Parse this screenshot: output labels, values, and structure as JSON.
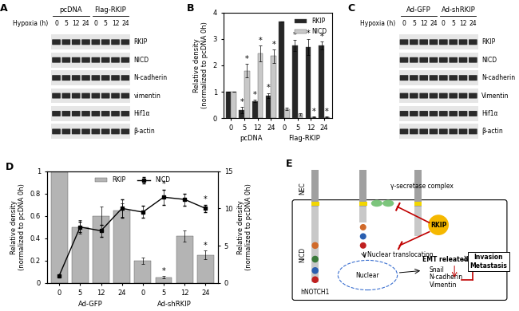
{
  "blots": [
    {
      "letter": "A",
      "time_label": "Hypoxia (h)",
      "groups": [
        "pcDNA",
        "Flag-RKIP"
      ],
      "lanes": [
        "0",
        "5",
        "12",
        "24"
      ],
      "rows": [
        "RKIP",
        "NICD",
        "N-cadherin",
        "vimentin",
        "Hif1α",
        "β-actin"
      ]
    },
    {
      "letter": "C",
      "time_label": "Hypoxia (h)",
      "groups": [
        "Ad-GFP",
        "Ad-shRKIP"
      ],
      "lanes": [
        "0",
        "5",
        "12",
        "24"
      ],
      "rows": [
        "RKIP",
        "NICD",
        "N-cadherin",
        "Vimentin",
        "Hif1α",
        "β-actin"
      ]
    }
  ],
  "chart_data": [
    {
      "letter": "B",
      "type": "bar",
      "ylabel": "Relative density\n(normalized to pcDNA 0h)",
      "categories": [
        "0",
        "5",
        "12",
        "24",
        "0",
        "5",
        "12",
        "24"
      ],
      "groups": [
        "pcDNA",
        "Flag-RKIP"
      ],
      "ylim": [
        0,
        4
      ],
      "yticks": [
        0,
        1,
        2,
        3,
        4
      ],
      "legend": "upper right",
      "annotation_text": "*",
      "series": [
        {
          "name": "RKIP",
          "color": "#262626",
          "values": [
            1,
            0.3,
            0.65,
            0.85,
            3.65,
            2.75,
            2.7,
            2.75
          ],
          "errors": [
            0,
            0.12,
            0.05,
            0.1,
            0,
            0.2,
            0.3,
            0.15
          ],
          "significant": [
            false,
            true,
            true,
            true,
            false,
            true,
            true,
            true
          ]
        },
        {
          "name": "NICD",
          "color": "#c8c8c8",
          "values": [
            1,
            1.8,
            2.45,
            2.35,
            0.35,
            0.15,
            0.05,
            0.05
          ],
          "errors": [
            0,
            0.25,
            0.3,
            0.25,
            0.05,
            0.05,
            0.02,
            0.02
          ],
          "significant": [
            false,
            true,
            true,
            true,
            false,
            false,
            true,
            true
          ]
        }
      ]
    },
    {
      "letter": "D",
      "type": "bar",
      "ylabel": "Relative density\n(normalized to pcDNA 0h)",
      "y2label": "Relative density\n(normalized to pcDNA 0h)",
      "categories": [
        "0",
        "5",
        "12",
        "24",
        "0",
        "5",
        "12",
        "24"
      ],
      "groups": [
        "Ad-GFP",
        "Ad-shRKIP"
      ],
      "ylim": [
        0,
        1
      ],
      "yticks": [
        0,
        0.2,
        0.4,
        0.6,
        0.8,
        1
      ],
      "y2lim": [
        0,
        15
      ],
      "y2ticks": [
        0,
        5,
        10,
        15
      ],
      "legend": "upper center",
      "annotation_text": "*",
      "series": [
        {
          "name": "RKIP",
          "type": "bar",
          "color": "#b4b4b4",
          "values": [
            1,
            0.5,
            0.6,
            0.65,
            0.2,
            0.05,
            0.42,
            0.25
          ],
          "errors": [
            0,
            0.06,
            0.08,
            0.06,
            0.03,
            0.01,
            0.05,
            0.04
          ],
          "significant": [
            false,
            false,
            false,
            false,
            false,
            true,
            false,
            true
          ]
        },
        {
          "name": "NICD",
          "type": "line",
          "axis": "y2",
          "color": "#000000",
          "marker": "square",
          "values": [
            1,
            7.5,
            7,
            10,
            9.5,
            11.5,
            11.2,
            10
          ],
          "errors": [
            0,
            0.7,
            0.8,
            1.2,
            0.8,
            1,
            0.8,
            0.5
          ],
          "significant": [
            false,
            false,
            false,
            false,
            false,
            true,
            false,
            true
          ]
        }
      ]
    }
  ],
  "diagram": {
    "letter": "E",
    "receptor": "hNOTCH1",
    "extracellular": "NEC",
    "intracellular": "NICD",
    "protease": "γ-secretase complex",
    "inhibitor": "RKIP",
    "step": "Nuclear translocation",
    "nucleus": "Nuclear",
    "genes_title": "EMT releated genes",
    "genes": [
      "Snail",
      "N-cadherin",
      "Vimentin"
    ],
    "outcome": [
      "Invasion",
      "Metastasis"
    ]
  }
}
